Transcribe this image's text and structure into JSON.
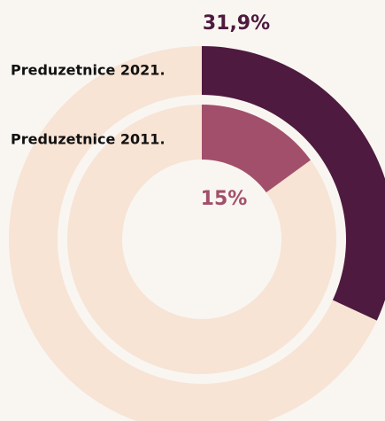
{
  "chart_data": {
    "type": "donut",
    "track_color": "#f7e4d5",
    "series": [
      {
        "name": "Preduzetnice 2021.",
        "color": "#4e1a3f",
        "values": [
          31.9
        ],
        "value_labels": [
          "31,9%"
        ]
      },
      {
        "name": "Preduzetnice 2011.",
        "color": "#a24f6c",
        "values": [
          15
        ],
        "value_labels": [
          "15%"
        ]
      }
    ]
  }
}
